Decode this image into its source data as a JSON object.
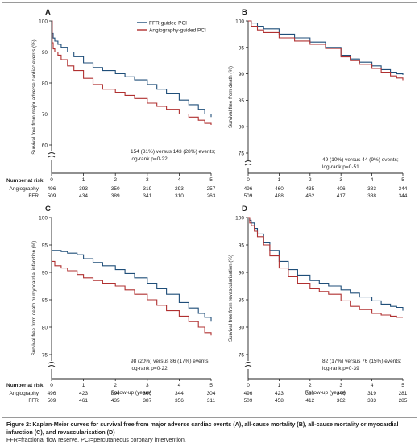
{
  "figure": {
    "caption_title": "Figure 2: Kaplan-Meier curves for survival free from major adverse cardiac events (A), all-cause mortality (B), all-cause mortality or myocardial infarction (C), and revascularisation (D)",
    "caption_note": "FFR=fractional flow reserve. PCI=percutaneous coronary intervention.",
    "number_at_risk_label": "Number at risk",
    "colors": {
      "ffr": "#1f4e79",
      "angiography": "#b03030",
      "axis": "#222222",
      "text": "#222222"
    }
  },
  "chart_data": [
    {
      "id": "A",
      "type": "line",
      "panel_label": "A",
      "ylabel": "Survival free from major adverse cardiac events (%)",
      "xlabel": "",
      "xlim": [
        0,
        5
      ],
      "ylim": [
        60,
        100
      ],
      "xticks": [
        "0",
        "1",
        "2",
        "3",
        "4",
        "5"
      ],
      "yticks": [
        "60",
        "70",
        "80",
        "90",
        "100"
      ],
      "axis_break": true,
      "legend": {
        "position": "top-right",
        "entries": [
          "FFR-guided PCI",
          "Angiography-guided PCI"
        ]
      },
      "annotation": [
        "154 (31%) versus 143 (28%) events;",
        "log-rank p=0·22"
      ],
      "series": [
        {
          "name": "FFR-guided PCI",
          "color": "#1f4e79",
          "x": [
            0,
            0.02,
            0.05,
            0.1,
            0.2,
            0.3,
            0.5,
            0.7,
            1.0,
            1.3,
            1.6,
            2.0,
            2.3,
            2.6,
            3.0,
            3.3,
            3.6,
            4.0,
            4.3,
            4.6,
            4.8,
            5.0
          ],
          "y": [
            100,
            96,
            94.5,
            93.5,
            92.5,
            91.5,
            90,
            88.5,
            86.5,
            85,
            84,
            83,
            82,
            81,
            79.5,
            78,
            76.5,
            74.5,
            73,
            71.5,
            70,
            69
          ]
        },
        {
          "name": "Angiography-guided PCI",
          "color": "#b03030",
          "x": [
            0,
            0.02,
            0.05,
            0.1,
            0.2,
            0.3,
            0.5,
            0.7,
            1.0,
            1.3,
            1.6,
            2.0,
            2.3,
            2.6,
            3.0,
            3.3,
            3.6,
            4.0,
            4.3,
            4.6,
            4.8,
            5.0
          ],
          "y": [
            100,
            93,
            91,
            90,
            89,
            87.5,
            85.5,
            84,
            81.5,
            79.5,
            78,
            77,
            76,
            75,
            73.5,
            72.5,
            71.5,
            70,
            69,
            68,
            67,
            66.5
          ]
        }
      ],
      "risk_table": {
        "show_label": true,
        "rows": [
          {
            "label": "Angiography",
            "values": [
              "496",
              "393",
              "350",
              "319",
              "293",
              "257"
            ]
          },
          {
            "label": "FFR",
            "values": [
              "509",
              "434",
              "389",
              "341",
              "310",
              "263"
            ]
          }
        ]
      }
    },
    {
      "id": "B",
      "type": "line",
      "panel_label": "B",
      "ylabel": "Survival free from death (%)",
      "xlabel": "",
      "xlim": [
        0,
        5
      ],
      "ylim": [
        75,
        100
      ],
      "xticks": [
        "0",
        "1",
        "2",
        "3",
        "4",
        "5"
      ],
      "yticks": [
        "75",
        "80",
        "85",
        "90",
        "95",
        "100"
      ],
      "axis_break": true,
      "annotation": [
        "49 (10%) versus 44 (9%) events;",
        "log-rank p=0·51"
      ],
      "series": [
        {
          "name": "FFR-guided PCI",
          "color": "#1f4e79",
          "x": [
            0,
            0.1,
            0.3,
            0.5,
            1.0,
            1.5,
            2.0,
            2.5,
            3.0,
            3.3,
            3.6,
            4.0,
            4.3,
            4.6,
            4.8,
            5.0
          ],
          "y": [
            100,
            99.6,
            99,
            98.5,
            97.5,
            96.8,
            96,
            95,
            93.5,
            92.8,
            92.2,
            91.5,
            90.8,
            90.3,
            90,
            89.8
          ]
        },
        {
          "name": "Angiography-guided PCI",
          "color": "#b03030",
          "x": [
            0,
            0.1,
            0.3,
            0.5,
            1.0,
            1.5,
            2.0,
            2.5,
            3.0,
            3.3,
            3.6,
            4.0,
            4.3,
            4.6,
            4.8,
            5.0
          ],
          "y": [
            100,
            99,
            98.3,
            97.8,
            96.8,
            96.2,
            95.6,
            94.8,
            93.2,
            92.5,
            91.8,
            91,
            90.3,
            89.6,
            89.2,
            88.8
          ]
        }
      ],
      "risk_table": {
        "show_label": false,
        "rows": [
          {
            "label": "",
            "values": [
              "496",
              "460",
              "435",
              "406",
              "383",
              "344"
            ]
          },
          {
            "label": "",
            "values": [
              "509",
              "488",
              "462",
              "417",
              "388",
              "344"
            ]
          }
        ]
      }
    },
    {
      "id": "C",
      "type": "line",
      "panel_label": "C",
      "ylabel": "Survival free from death or myocardial infarction (%)",
      "xlabel": "Follow-up (years)",
      "xlim": [
        0,
        5
      ],
      "ylim": [
        75,
        100
      ],
      "xticks": [
        "0",
        "1",
        "2",
        "3",
        "4",
        "5"
      ],
      "yticks": [
        "75",
        "80",
        "85",
        "90",
        "95",
        "100"
      ],
      "axis_break": true,
      "annotation": [
        "98 (20%) versus 86 (17%) events;",
        "log-rank p=0·22"
      ],
      "series": [
        {
          "name": "FFR-guided PCI",
          "color": "#1f4e79",
          "x": [
            0,
            0.1,
            0.3,
            0.5,
            0.8,
            1.0,
            1.3,
            1.6,
            2.0,
            2.3,
            2.6,
            3.0,
            3.3,
            3.6,
            4.0,
            4.3,
            4.6,
            4.8,
            5.0
          ],
          "y": [
            94,
            94,
            93.8,
            93.5,
            93.2,
            92.5,
            91.8,
            91.2,
            90.5,
            89.8,
            89,
            88,
            87,
            86,
            84.5,
            83.5,
            82.5,
            81.8,
            81
          ]
        },
        {
          "name": "Angiography-guided PCI",
          "color": "#b03030",
          "x": [
            0,
            0.1,
            0.3,
            0.5,
            0.8,
            1.0,
            1.3,
            1.6,
            2.0,
            2.3,
            2.6,
            3.0,
            3.3,
            3.6,
            4.0,
            4.3,
            4.6,
            4.8,
            5.0
          ],
          "y": [
            92,
            91.2,
            90.8,
            90.3,
            89.6,
            89,
            88.5,
            88,
            87.5,
            86.8,
            86,
            85,
            84,
            83,
            82,
            81,
            80,
            79,
            78.5
          ]
        }
      ],
      "risk_table": {
        "show_label": true,
        "rows": [
          {
            "label": "Angiography",
            "values": [
              "496",
              "423",
              "394",
              "366",
              "344",
              "304"
            ]
          },
          {
            "label": "FFR",
            "values": [
              "509",
              "461",
              "435",
              "387",
              "356",
              "311"
            ]
          }
        ]
      }
    },
    {
      "id": "D",
      "type": "line",
      "panel_label": "D",
      "ylabel": "Survival free from revascularisation (%)",
      "xlabel": "Follow-up (years)",
      "xlim": [
        0,
        5
      ],
      "ylim": [
        75,
        100
      ],
      "xticks": [
        "0",
        "1",
        "2",
        "3",
        "4",
        "5"
      ],
      "yticks": [
        "75",
        "80",
        "85",
        "90",
        "95",
        "100"
      ],
      "axis_break": true,
      "annotation": [
        "82 (17%) versus 76 (15%) events;",
        "log-rank p=0·39"
      ],
      "series": [
        {
          "name": "FFR-guided PCI",
          "color": "#1f4e79",
          "x": [
            0,
            0.05,
            0.1,
            0.2,
            0.3,
            0.5,
            0.7,
            1.0,
            1.3,
            1.6,
            2.0,
            2.3,
            2.6,
            3.0,
            3.3,
            3.6,
            4.0,
            4.3,
            4.6,
            4.8,
            5.0
          ],
          "y": [
            100,
            99.5,
            99,
            98,
            97,
            95.5,
            94,
            92,
            90.5,
            89.5,
            88.5,
            88,
            87.5,
            86.8,
            86.2,
            85.5,
            84.8,
            84.2,
            83.8,
            83.6,
            83
          ]
        },
        {
          "name": "Angiography-guided PCI",
          "color": "#b03030",
          "x": [
            0,
            0.05,
            0.1,
            0.2,
            0.3,
            0.5,
            0.7,
            1.0,
            1.3,
            1.6,
            2.0,
            2.3,
            2.6,
            3.0,
            3.3,
            3.6,
            4.0,
            4.3,
            4.6,
            4.8,
            5.0
          ],
          "y": [
            100,
            99,
            98.5,
            97.5,
            96.5,
            95,
            93,
            90.8,
            89.2,
            88,
            87,
            86.5,
            86,
            84.8,
            83.8,
            83.2,
            82.5,
            82.2,
            82,
            81.8,
            81.8
          ]
        }
      ],
      "risk_table": {
        "show_label": false,
        "rows": [
          {
            "label": "",
            "values": [
              "496",
              "423",
              "380",
              "346",
              "319",
              "281"
            ]
          },
          {
            "label": "",
            "values": [
              "509",
              "458",
              "412",
              "362",
              "333",
              "285"
            ]
          }
        ]
      }
    }
  ]
}
